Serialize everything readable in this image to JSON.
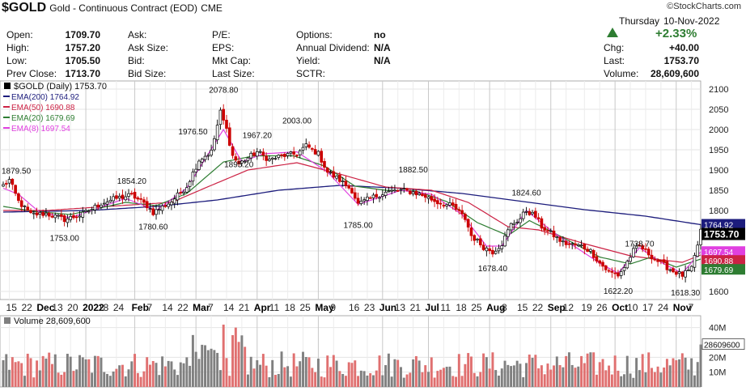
{
  "header": {
    "symbol": "$GOLD",
    "description": "Gold - Continuous Contract (EOD)",
    "exchange": "CME",
    "logo": "©StockCharts.com",
    "date_day": "Thursday",
    "date": "10-Nov-2022",
    "pct_change": "+2.33%",
    "up_arrow_icon": "triangle-up-icon"
  },
  "quote": {
    "col1": [
      {
        "label": "Open:",
        "value": "1709.70"
      },
      {
        "label": "High:",
        "value": "1757.20"
      },
      {
        "label": "Low:",
        "value": "1705.50"
      },
      {
        "label": "Prev Close:",
        "value": "1713.70"
      }
    ],
    "col2": [
      "Ask:",
      "Ask Size:",
      "Bid:",
      "Bid Size:"
    ],
    "col3": [
      "P/E:",
      "EPS:",
      "Mkt Cap:",
      "Last Size:"
    ],
    "col4": [
      {
        "label": "Options:",
        "value": "no"
      },
      {
        "label": "Annual Dividend:",
        "value": "N/A"
      },
      {
        "label": "Yield:",
        "value": "N/A"
      },
      {
        "label": "SCTR:",
        "value": ""
      }
    ],
    "col5": [
      {
        "label": "Chg:",
        "value": "+40.00"
      },
      {
        "label": "Last:",
        "value": "1753.70"
      },
      {
        "label": "Volume:",
        "value": "28,609,600"
      }
    ]
  },
  "colors": {
    "price": "#000000",
    "up_candle": "#000000",
    "down_candle": "#cc0000",
    "ema200": "#1c1c7c",
    "ema50": "#cc2244",
    "ema20": "#2e7d32",
    "ema8": "#e040e0",
    "vol_up": "#808080",
    "vol_down": "#e07070",
    "up_green": "#2e7d32"
  },
  "chart_data": [
    {
      "type": "candlestick",
      "title": "$GOLD (Daily) 1753.70",
      "legend": [
        {
          "name": "EMA(200) 1764.92",
          "color": "#1c1c7c"
        },
        {
          "name": "EMA(50) 1690.88",
          "color": "#cc2244"
        },
        {
          "name": "EMA(20) 1679.69",
          "color": "#2e7d32"
        },
        {
          "name": "EMA(8) 1697.54",
          "color": "#e040e0"
        }
      ],
      "legend_position": "top-left",
      "ylim": [
        1580,
        2120
      ],
      "y_ticks": [
        1600,
        1650,
        1700,
        1750,
        1800,
        1850,
        1900,
        1950,
        2000,
        2050,
        2100
      ],
      "x_tick_labels": [
        {
          "label": "15",
          "month": false
        },
        {
          "label": "22",
          "month": false
        },
        {
          "label": "Dec",
          "month": true
        },
        {
          "label": "13",
          "month": false
        },
        {
          "label": "20",
          "month": false
        },
        {
          "label": "2022",
          "month": true
        },
        {
          "label": "18",
          "month": false
        },
        {
          "label": "24",
          "month": false
        },
        {
          "label": "Feb",
          "month": true
        },
        {
          "label": "7",
          "month": false
        },
        {
          "label": "14",
          "month": false
        },
        {
          "label": "22",
          "month": false
        },
        {
          "label": "Mar",
          "month": true
        },
        {
          "label": "7",
          "month": false
        },
        {
          "label": "14",
          "month": false
        },
        {
          "label": "21",
          "month": false
        },
        {
          "label": "Apr",
          "month": true
        },
        {
          "label": "11",
          "month": false
        },
        {
          "label": "18",
          "month": false
        },
        {
          "label": "25",
          "month": false
        },
        {
          "label": "May",
          "month": true
        },
        {
          "label": "9",
          "month": false
        },
        {
          "label": "16",
          "month": false
        },
        {
          "label": "23",
          "month": false
        },
        {
          "label": "Jun",
          "month": true
        },
        {
          "label": "13",
          "month": false
        },
        {
          "label": "21",
          "month": false
        },
        {
          "label": "Jul",
          "month": true
        },
        {
          "label": "11",
          "month": false
        },
        {
          "label": "18",
          "month": false
        },
        {
          "label": "25",
          "month": false
        },
        {
          "label": "Aug",
          "month": true
        },
        {
          "label": "8",
          "month": false
        },
        {
          "label": "15",
          "month": false
        },
        {
          "label": "22",
          "month": false
        },
        {
          "label": "Sep",
          "month": true
        },
        {
          "label": "12",
          "month": false
        },
        {
          "label": "19",
          "month": false
        },
        {
          "label": "26",
          "month": false
        },
        {
          "label": "Oct",
          "month": true
        },
        {
          "label": "10",
          "month": false
        },
        {
          "label": "17",
          "month": false
        },
        {
          "label": "24",
          "month": false
        },
        {
          "label": "Nov",
          "month": true
        },
        {
          "label": "7",
          "month": false
        }
      ],
      "annotations": [
        {
          "text": "1879.50",
          "i": 0,
          "value": 1879.5
        },
        {
          "text": "1753.00",
          "i": 20,
          "value": 1753
        },
        {
          "text": "1854.20",
          "i": 42,
          "value": 1854.2
        },
        {
          "text": "1780.60",
          "i": 49,
          "value": 1780.6
        },
        {
          "text": "1976.50",
          "i": 62,
          "value": 1976.5
        },
        {
          "text": "2078.80",
          "i": 72,
          "value": 2078.8
        },
        {
          "text": "1895.20",
          "i": 77,
          "value": 1895.2
        },
        {
          "text": "1967.20",
          "i": 83,
          "value": 1967.2
        },
        {
          "text": "2003.00",
          "i": 96,
          "value": 2003
        },
        {
          "text": "1785.00",
          "i": 116,
          "value": 1785
        },
        {
          "text": "1882.50",
          "i": 134,
          "value": 1882.5
        },
        {
          "text": "1678.40",
          "i": 160,
          "value": 1678.4
        },
        {
          "text": "1824.60",
          "i": 171,
          "value": 1824.6
        },
        {
          "text": "1622.20",
          "i": 201,
          "value": 1622.2
        },
        {
          "text": "1738.70",
          "i": 208,
          "value": 1738.7
        },
        {
          "text": "1618.30",
          "i": 223,
          "value": 1618.3
        }
      ],
      "right_labels": [
        {
          "text": "1764.92",
          "value": 1764.92,
          "bg": "#1c1c7c"
        },
        {
          "text": "1753.70",
          "value": 1753.7,
          "bg": "#000000"
        },
        {
          "text": "1697.54",
          "value": 1697.54,
          "bg": "#e040e0"
        },
        {
          "text": "1690.88",
          "value": 1690.88,
          "bg": "#cc2244"
        },
        {
          "text": "1679.69",
          "value": 1679.69,
          "bg": "#2e7d32"
        }
      ],
      "anchors": [
        [
          0,
          1862
        ],
        [
          2,
          1875
        ],
        [
          5,
          1822
        ],
        [
          9,
          1790
        ],
        [
          14,
          1792
        ],
        [
          20,
          1778
        ],
        [
          26,
          1790
        ],
        [
          32,
          1818
        ],
        [
          37,
          1830
        ],
        [
          42,
          1838
        ],
        [
          47,
          1812
        ],
        [
          49,
          1795
        ],
        [
          55,
          1822
        ],
        [
          60,
          1860
        ],
        [
          64,
          1925
        ],
        [
          68,
          1945
        ],
        [
          71,
          2043
        ],
        [
          73,
          2000
        ],
        [
          75,
          1935
        ],
        [
          77,
          1915
        ],
        [
          80,
          1930
        ],
        [
          83,
          1945
        ],
        [
          87,
          1925
        ],
        [
          91,
          1935
        ],
        [
          96,
          1940
        ],
        [
          99,
          1960
        ],
        [
          103,
          1940
        ],
        [
          106,
          1895
        ],
        [
          110,
          1875
        ],
        [
          114,
          1850
        ],
        [
          116,
          1815
        ],
        [
          120,
          1830
        ],
        [
          125,
          1845
        ],
        [
          130,
          1850
        ],
        [
          134,
          1845
        ],
        [
          138,
          1835
        ],
        [
          142,
          1820
        ],
        [
          147,
          1810
        ],
        [
          151,
          1780
        ],
        [
          153,
          1738
        ],
        [
          157,
          1710
        ],
        [
          160,
          1698
        ],
        [
          163,
          1718
        ],
        [
          166,
          1765
        ],
        [
          169,
          1780
        ],
        [
          171,
          1800
        ],
        [
          174,
          1785
        ],
        [
          176,
          1760
        ],
        [
          180,
          1738
        ],
        [
          183,
          1720
        ],
        [
          186,
          1715
        ],
        [
          189,
          1712
        ],
        [
          192,
          1700
        ],
        [
          195,
          1670
        ],
        [
          198,
          1648
        ],
        [
          201,
          1640
        ],
        [
          203,
          1660
        ],
        [
          206,
          1700
        ],
        [
          208,
          1712
        ],
        [
          210,
          1700
        ],
        [
          213,
          1680
        ],
        [
          216,
          1665
        ],
        [
          219,
          1650
        ],
        [
          222,
          1640
        ],
        [
          225,
          1655
        ],
        [
          227,
          1715
        ],
        [
          228,
          1753
        ]
      ],
      "ema_anchors": {
        "ema200": [
          [
            0,
            1796
          ],
          [
            28,
            1800
          ],
          [
            50,
            1810
          ],
          [
            70,
            1826
          ],
          [
            90,
            1850
          ],
          [
            110,
            1862
          ],
          [
            130,
            1855
          ],
          [
            150,
            1842
          ],
          [
            170,
            1822
          ],
          [
            190,
            1802
          ],
          [
            210,
            1786
          ],
          [
            228,
            1765
          ]
        ],
        "ema50": [
          [
            0,
            1800
          ],
          [
            14,
            1800
          ],
          [
            38,
            1812
          ],
          [
            55,
            1820
          ],
          [
            68,
            1862
          ],
          [
            80,
            1900
          ],
          [
            96,
            1918
          ],
          [
            110,
            1890
          ],
          [
            125,
            1858
          ],
          [
            140,
            1850
          ],
          [
            152,
            1820
          ],
          [
            165,
            1760
          ],
          [
            175,
            1752
          ],
          [
            190,
            1718
          ],
          [
            205,
            1688
          ],
          [
            215,
            1678
          ],
          [
            222,
            1672
          ],
          [
            228,
            1690
          ]
        ],
        "ema20": [
          [
            0,
            1810
          ],
          [
            10,
            1798
          ],
          [
            22,
            1790
          ],
          [
            40,
            1820
          ],
          [
            50,
            1812
          ],
          [
            60,
            1842
          ],
          [
            72,
            1920
          ],
          [
            82,
            1935
          ],
          [
            95,
            1935
          ],
          [
            105,
            1910
          ],
          [
            115,
            1860
          ],
          [
            125,
            1850
          ],
          [
            135,
            1848
          ],
          [
            145,
            1822
          ],
          [
            155,
            1770
          ],
          [
            165,
            1738
          ],
          [
            172,
            1775
          ],
          [
            180,
            1745
          ],
          [
            195,
            1685
          ],
          [
            205,
            1668
          ],
          [
            212,
            1685
          ],
          [
            220,
            1660
          ],
          [
            228,
            1680
          ]
        ],
        "ema8": [
          [
            0,
            1855
          ],
          [
            5,
            1840
          ],
          [
            12,
            1795
          ],
          [
            22,
            1782
          ],
          [
            40,
            1830
          ],
          [
            50,
            1800
          ],
          [
            60,
            1855
          ],
          [
            72,
            2000
          ],
          [
            78,
            1920
          ],
          [
            85,
            1940
          ],
          [
            96,
            1945
          ],
          [
            106,
            1895
          ],
          [
            116,
            1815
          ],
          [
            130,
            1850
          ],
          [
            140,
            1840
          ],
          [
            150,
            1790
          ],
          [
            158,
            1712
          ],
          [
            163,
            1712
          ],
          [
            171,
            1800
          ],
          [
            180,
            1745
          ],
          [
            195,
            1670
          ],
          [
            201,
            1645
          ],
          [
            208,
            1708
          ],
          [
            215,
            1672
          ],
          [
            222,
            1645
          ],
          [
            228,
            1698
          ]
        ]
      }
    },
    {
      "type": "bar",
      "title": "Volume 28,609,600",
      "y_ticks": [
        {
          "label": "40M",
          "value": 40
        },
        {
          "label": "20M",
          "value": 20
        },
        {
          "label": "10M",
          "value": 10
        }
      ],
      "last_label": "28609600",
      "last_value": 28.6
    }
  ]
}
